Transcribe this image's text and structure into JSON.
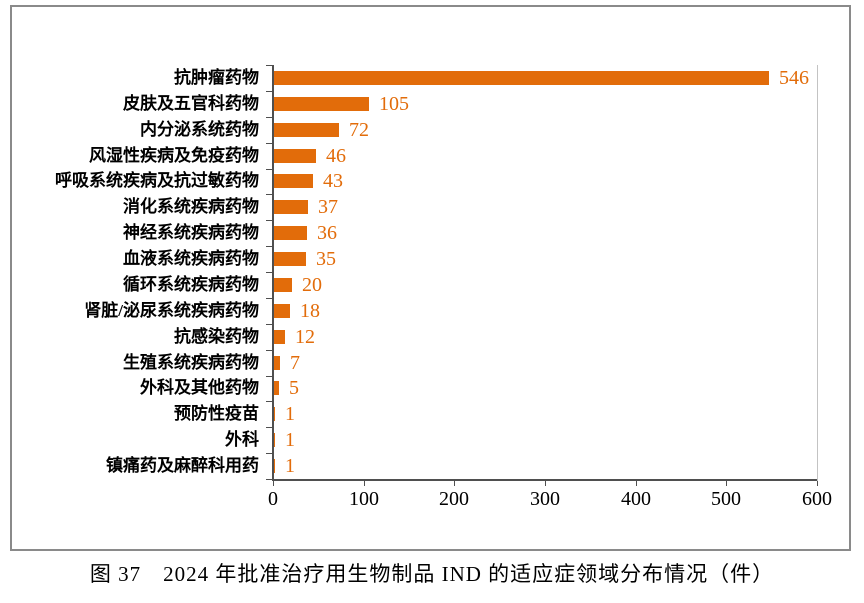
{
  "caption": "图 37　2024 年批准治疗用生物制品 IND 的适应症领域分布情况（件）",
  "colors": {
    "bar": "#e26c0a",
    "value_label": "#e26c0a",
    "axis_line": "#4f4f4f",
    "plot_border": "#c3c3c3",
    "frame_border": "#8a8a8a",
    "text": "#000000"
  },
  "chart_data": {
    "type": "bar",
    "orientation": "horizontal",
    "title": "",
    "xlabel": "",
    "ylabel": "",
    "xlim": [
      0,
      600
    ],
    "x_ticks": [
      0,
      100,
      200,
      300,
      400,
      500,
      600
    ],
    "grid": false,
    "legend": false,
    "data_labels": true,
    "categories": [
      "抗肿瘤药物",
      "皮肤及五官科药物",
      "内分泌系统药物",
      "风湿性疾病及免疫药物",
      "呼吸系统疾病及抗过敏药物",
      "消化系统疾病药物",
      "神经系统疾病药物",
      "血液系统疾病药物",
      "循环系统疾病药物",
      "肾脏/泌尿系统疾病药物",
      "抗感染药物",
      "生殖系统疾病药物",
      "外科及其他药物",
      "预防性疫苗",
      "外科",
      "镇痛药及麻醉科用药"
    ],
    "values": [
      546,
      105,
      72,
      46,
      43,
      37,
      36,
      35,
      20,
      18,
      12,
      7,
      5,
      1,
      1,
      1
    ]
  }
}
